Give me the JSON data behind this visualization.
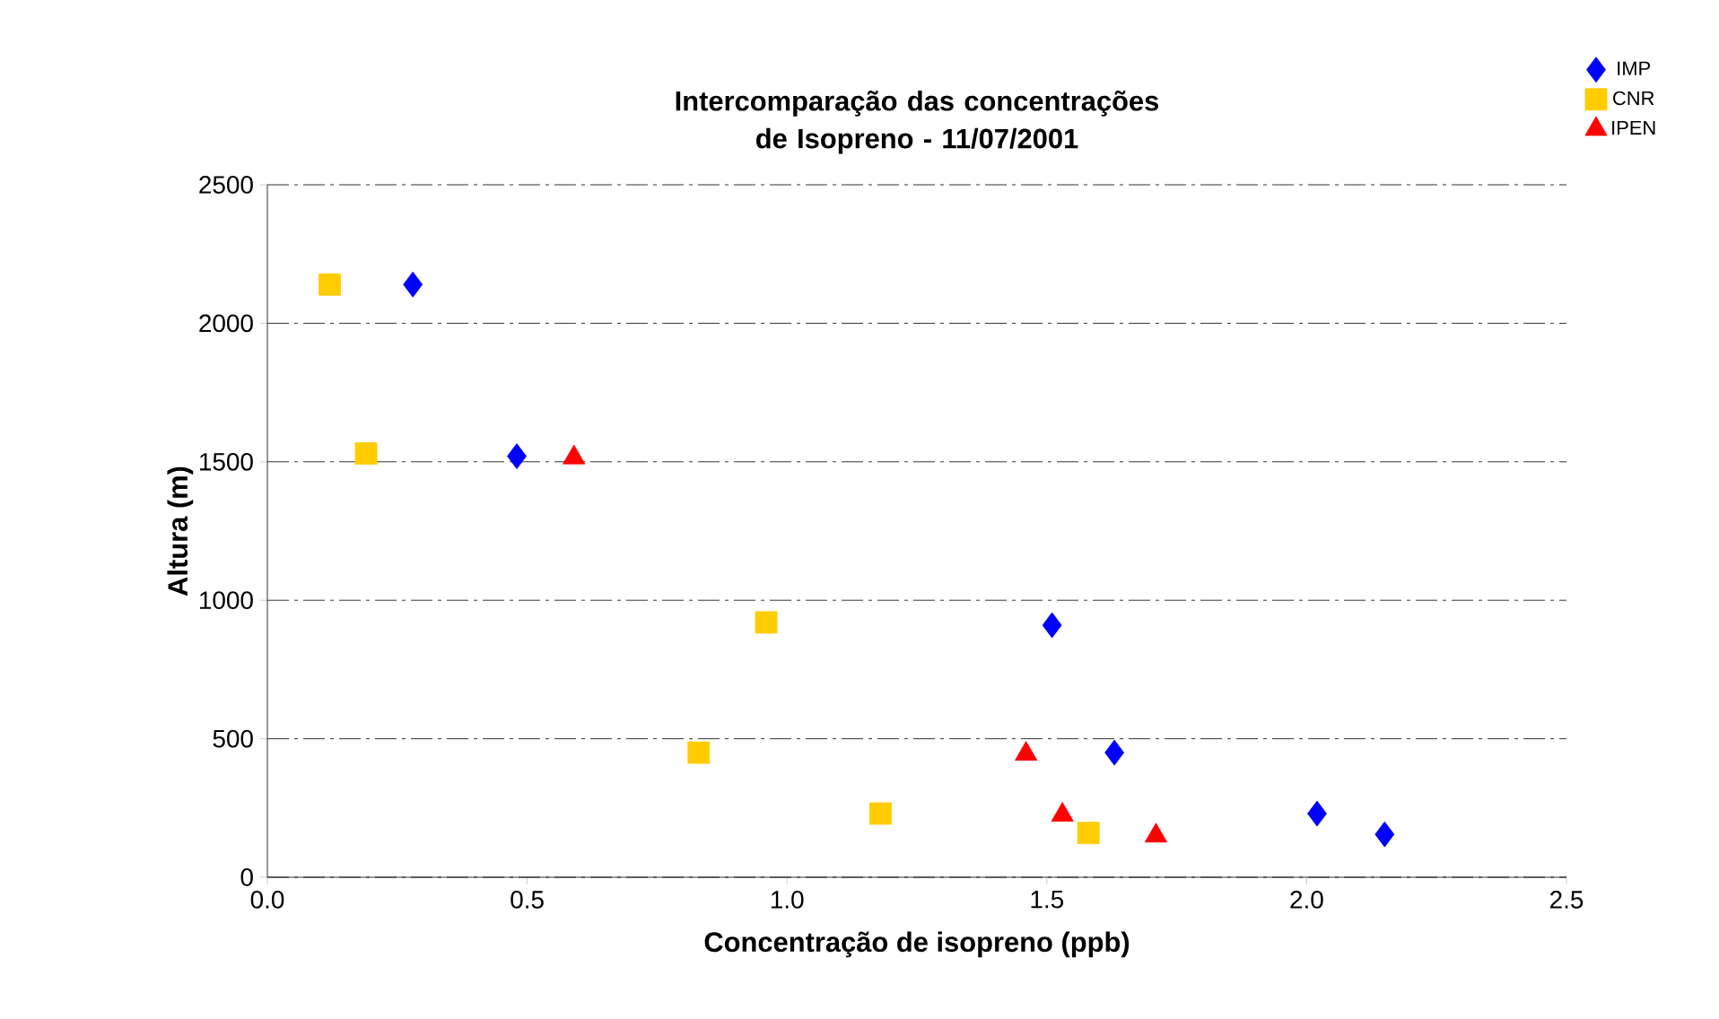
{
  "chart_data": {
    "type": "scatter",
    "title": "Intercomparação das concentrações de Isopreno - 11/07/2001",
    "xlabel": "Concentração de isopreno (ppb)",
    "ylabel": "Altura (m)",
    "xlim": [
      0,
      2.5
    ],
    "xticks": [
      {
        "value": 0,
        "label": "0.0"
      },
      {
        "value": 0.5,
        "label": "0.5"
      },
      {
        "value": 1,
        "label": "1.0"
      },
      {
        "value": 1.5,
        "label": "1.5"
      },
      {
        "value": 2,
        "label": "2.0"
      },
      {
        "value": 2.5,
        "label": "2.5"
      }
    ],
    "ylim": [
      0,
      2500
    ],
    "yticks": [
      0,
      500,
      1000,
      1500,
      2000,
      2500
    ],
    "grid": "y",
    "legend": "top right",
    "series": [
      {
        "name": "IMP",
        "color": "#0000ff",
        "marker": "diamond",
        "x": [
          0.28,
          0.48,
          1.51,
          1.63,
          2.02,
          2.15
        ],
        "values": [
          2140,
          1520,
          910,
          450,
          230,
          155
        ]
      },
      {
        "name": "CNR",
        "color": "#ffcc00",
        "marker": "square",
        "x": [
          0.12,
          0.19,
          0.96,
          0.83,
          1.18,
          1.58
        ],
        "values": [
          2140,
          1530,
          920,
          450,
          230,
          160
        ]
      },
      {
        "name": "IPEN",
        "color": "#ff0000",
        "marker": "triangle",
        "x": [
          0.59,
          1.46,
          1.53,
          1.71
        ],
        "values": [
          1515,
          445,
          225,
          150
        ]
      }
    ]
  }
}
